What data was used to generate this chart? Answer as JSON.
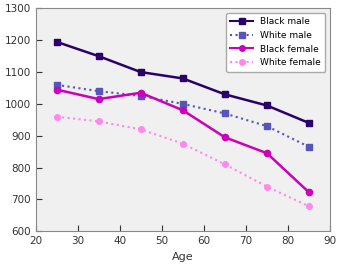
{
  "ages": [
    25,
    35,
    45,
    55,
    65,
    75,
    85
  ],
  "black_male": [
    1195,
    1150,
    1100,
    1080,
    1030,
    995,
    940
  ],
  "white_male": [
    1060,
    1040,
    1025,
    1000,
    970,
    930,
    865
  ],
  "black_female": [
    1045,
    1015,
    1035,
    980,
    895,
    845,
    722
  ],
  "white_female": [
    960,
    945,
    920,
    875,
    810,
    740,
    678
  ],
  "xlim": [
    20,
    90
  ],
  "ylim": [
    600,
    1300
  ],
  "xticks": [
    20,
    30,
    40,
    50,
    60,
    70,
    80,
    90
  ],
  "yticks": [
    600,
    700,
    800,
    900,
    1000,
    1100,
    1200,
    1300
  ],
  "xlabel": "Age",
  "black_male_color": "#2b006b",
  "white_male_color": "#5555bb",
  "black_female_color": "#cc00bb",
  "white_female_color": "#ff88ee",
  "bg_color": "#f0f0f0",
  "legend_labels": [
    "Black male",
    "White male",
    "Black female",
    "White female"
  ]
}
